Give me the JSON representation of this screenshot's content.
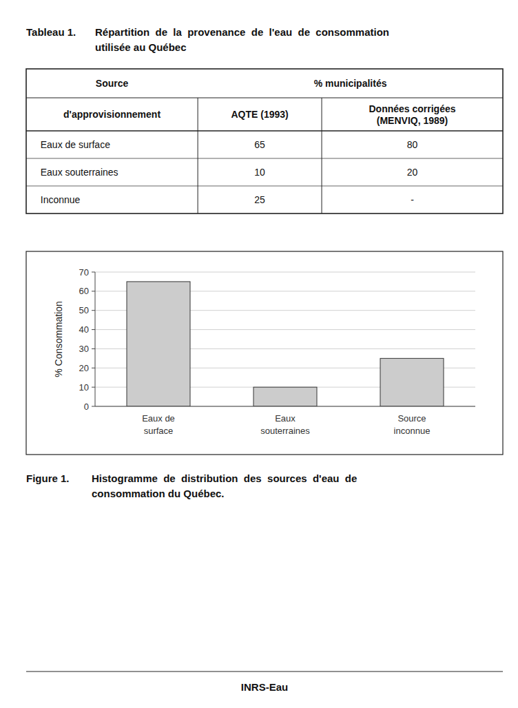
{
  "chart_data": [
    {
      "type": "table",
      "title": "Tableau 1.",
      "subtitle": [
        "Répartition  de  la  provenance  de  l'eau  de  consommation",
        "utilisée au Québec"
      ],
      "header": [
        [
          "Source",
          "% municipalités"
        ],
        [
          "d'approvisionnement",
          "AQTE (1993)",
          "Données corrigées\n(MENVIQ, 1989)"
        ]
      ],
      "rows": [
        [
          "Eaux de surface",
          "65",
          "80"
        ],
        [
          "Eaux souterraines",
          "10",
          "20"
        ],
        [
          "Inconnue",
          "25",
          "-"
        ]
      ]
    },
    {
      "type": "bar",
      "title": "Figure 1.",
      "subtitle": [
        "Histogramme  de  distribution  des  sources  d'eau  de",
        "consommation du Québec."
      ],
      "categories": [
        "Eaux de\nsurface",
        "Eaux\nsouterraines",
        "Source\ninconnue"
      ],
      "values": [
        65,
        10,
        25
      ],
      "color": "#cccccc",
      "ylabel": "% Consommation",
      "ylim": [
        0,
        70
      ],
      "yticks": [
        0,
        10,
        20,
        30,
        40,
        50,
        60,
        70
      ],
      "grid": true
    }
  ],
  "footer": "INRS-Eau"
}
